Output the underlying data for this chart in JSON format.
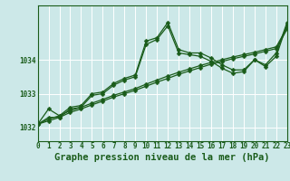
{
  "title": "Graphe pression niveau de la mer (hPa)",
  "background_color": "#cce8e8",
  "plot_bg_color": "#cce8e8",
  "grid_color": "#ffffff",
  "line_color": "#1a5c1a",
  "xlim": [
    0,
    23
  ],
  "ylim": [
    1031.6,
    1035.6
  ],
  "yticks": [
    1032,
    1033,
    1034
  ],
  "xticks": [
    0,
    1,
    2,
    3,
    4,
    5,
    6,
    7,
    8,
    9,
    10,
    11,
    12,
    13,
    14,
    15,
    16,
    17,
    18,
    19,
    20,
    21,
    22,
    23
  ],
  "series_jagged1": [
    1032.1,
    1032.55,
    1032.35,
    1032.6,
    1032.65,
    1033.0,
    1033.05,
    1033.3,
    1033.45,
    1033.55,
    1034.55,
    1034.65,
    1035.1,
    1034.3,
    1034.2,
    1034.2,
    1034.05,
    1033.85,
    1033.7,
    1033.7,
    1034.0,
    1033.85,
    1034.2,
    1035.1
  ],
  "series_jagged2": [
    1032.1,
    1032.3,
    1032.3,
    1032.55,
    1032.6,
    1032.95,
    1033.0,
    1033.25,
    1033.4,
    1033.5,
    1034.45,
    1034.6,
    1035.0,
    1034.2,
    1034.15,
    1034.1,
    1033.95,
    1033.75,
    1033.6,
    1033.65,
    1034.0,
    1033.8,
    1034.1,
    1035.05
  ],
  "series_line1": [
    1032.1,
    1032.25,
    1032.35,
    1032.5,
    1032.6,
    1032.72,
    1032.83,
    1032.95,
    1033.05,
    1033.15,
    1033.28,
    1033.4,
    1033.52,
    1033.63,
    1033.73,
    1033.83,
    1033.92,
    1034.0,
    1034.08,
    1034.15,
    1034.22,
    1034.3,
    1034.38,
    1034.95
  ],
  "series_line2": [
    1032.1,
    1032.2,
    1032.3,
    1032.45,
    1032.55,
    1032.67,
    1032.78,
    1032.9,
    1033.0,
    1033.1,
    1033.22,
    1033.34,
    1033.45,
    1033.57,
    1033.67,
    1033.77,
    1033.87,
    1033.95,
    1034.03,
    1034.1,
    1034.17,
    1034.25,
    1034.33,
    1034.9
  ],
  "title_fontsize": 7.5,
  "tick_fontsize": 5.5,
  "marker_size": 2.5,
  "linewidth": 0.9
}
